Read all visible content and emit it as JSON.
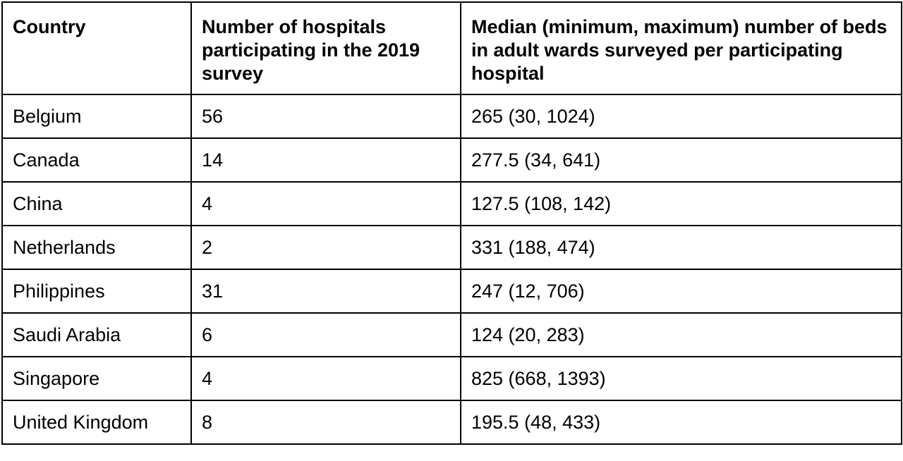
{
  "table": {
    "headers": [
      "Country",
      "Number of hospitals participating in the 2019 survey",
      "Median (minimum, maximum) number of beds in adult wards surveyed per participating hospital"
    ],
    "rows": [
      [
        "Belgium",
        "56",
        "265 (30, 1024)"
      ],
      [
        "Canada",
        "14",
        "277.5 (34, 641)"
      ],
      [
        "China",
        "4",
        "127.5 (108, 142)"
      ],
      [
        "Netherlands",
        "2",
        "331 (188, 474)"
      ],
      [
        "Philippines",
        "31",
        "247 (12, 706)"
      ],
      [
        "Saudi Arabia",
        "6",
        "124 (20, 283)"
      ],
      [
        "Singapore",
        "4",
        "825 (668, 1393)"
      ],
      [
        "United Kingdom",
        "8",
        "195.5 (48, 433)"
      ]
    ]
  }
}
